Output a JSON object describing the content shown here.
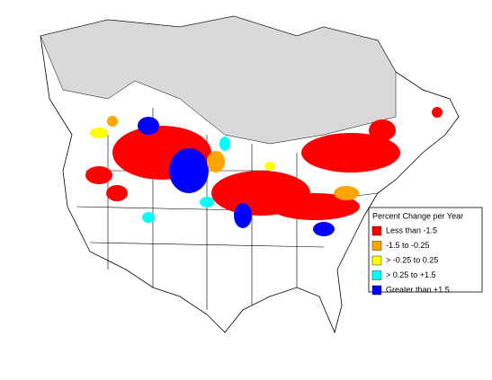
{
  "legend": {
    "title": "Percent Change per Year",
    "items": [
      {
        "label": "Less than -1.5",
        "color": "#ff0000"
      },
      {
        "label": "-1.5 to -0.25",
        "color": "#ffa500"
      },
      {
        "label": "> -0.25 to 0.25",
        "color": "#ffff00"
      },
      {
        "label": "> 0.25 to +1.5",
        "color": "#00ffff"
      },
      {
        "label": "Greater than +1.5",
        "color": "#0000ff"
      }
    ]
  }
}
